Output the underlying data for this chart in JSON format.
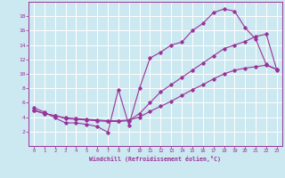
{
  "xlabel": "Windchill (Refroidissement éolien,°C)",
  "background_color": "#cce8f0",
  "grid_color": "#ffffff",
  "line_color": "#993399",
  "xlim": [
    -0.5,
    23.5
  ],
  "ylim": [
    0,
    20
  ],
  "xticks": [
    0,
    1,
    2,
    3,
    4,
    5,
    6,
    7,
    8,
    9,
    10,
    11,
    12,
    13,
    14,
    15,
    16,
    17,
    18,
    19,
    20,
    21,
    22,
    23
  ],
  "yticks": [
    2,
    4,
    6,
    8,
    10,
    12,
    14,
    16,
    18
  ],
  "line1_x": [
    0,
    1,
    2,
    3,
    4,
    5,
    6,
    7,
    8,
    9,
    10,
    11,
    12,
    13,
    14,
    15,
    16,
    17,
    18,
    19,
    20,
    21,
    22,
    23
  ],
  "line1_y": [
    5.3,
    4.7,
    3.9,
    3.2,
    3.2,
    3.0,
    2.7,
    1.9,
    7.8,
    2.9,
    8.0,
    12.2,
    13.0,
    14.0,
    14.4,
    16.0,
    17.0,
    18.5,
    19.0,
    18.7,
    16.4,
    14.8,
    11.3,
    10.6
  ],
  "line2_x": [
    0,
    1,
    2,
    3,
    4,
    5,
    6,
    7,
    8,
    9,
    10,
    11,
    12,
    13,
    14,
    15,
    16,
    17,
    18,
    19,
    20,
    21,
    22,
    23
  ],
  "line2_y": [
    5.0,
    4.5,
    4.2,
    3.8,
    3.7,
    3.6,
    3.5,
    3.4,
    3.4,
    3.5,
    4.5,
    6.0,
    7.5,
    8.5,
    9.5,
    10.5,
    11.5,
    12.5,
    13.5,
    14.0,
    14.5,
    15.2,
    15.5,
    10.5
  ],
  "line3_x": [
    0,
    1,
    2,
    3,
    4,
    5,
    6,
    7,
    8,
    9,
    10,
    11,
    12,
    13,
    14,
    15,
    16,
    17,
    18,
    19,
    20,
    21,
    22,
    23
  ],
  "line3_y": [
    4.9,
    4.5,
    4.2,
    3.9,
    3.8,
    3.7,
    3.6,
    3.5,
    3.5,
    3.6,
    4.0,
    4.8,
    5.5,
    6.2,
    7.0,
    7.8,
    8.5,
    9.3,
    10.0,
    10.5,
    10.8,
    11.0,
    11.2,
    10.6
  ]
}
